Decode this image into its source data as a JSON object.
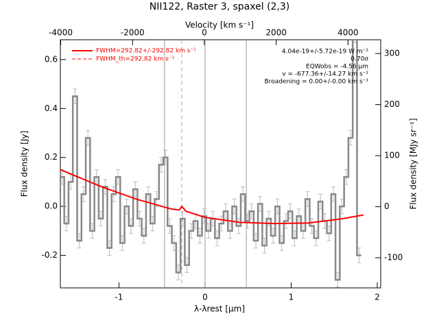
{
  "chart_data": {
    "type": "step",
    "title": "NII122, Raster 3, spaxel (2,3)",
    "x_label": "λ-λrest [μm]",
    "x2_label": "Velocity [km s⁻¹]",
    "y_label": "Flux density [Jy]",
    "y2_label": "Flux density [MJy sr⁻¹]",
    "xlim": [
      -1.68,
      2.04
    ],
    "xticks": [
      -1,
      0,
      1,
      2
    ],
    "x2lim": [
      -4010,
      4910
    ],
    "x2ticks": [
      -4000,
      -2000,
      0,
      2000,
      4000
    ],
    "ylim": [
      -0.333,
      0.681
    ],
    "yticks": [
      {
        "value": -0.2,
        "label": "-0.2"
      },
      {
        "value": 0,
        "label": "0.0"
      },
      0.2,
      0.4,
      0.6
    ],
    "y2lim": [
      -159,
      327
    ],
    "y2ticks": [
      -100,
      0,
      100,
      200,
      300
    ],
    "series": [
      {
        "name": "FWHM=292.82+/-292.82 km s⁻¹",
        "color": "#ff0000",
        "style": "solid",
        "x": [
          -1.68,
          -1.2,
          -0.8,
          -0.4,
          -0.3,
          -0.27,
          -0.22,
          0,
          0.4,
          0.8,
          1.2,
          1.6,
          1.84
        ],
        "values": [
          0.15,
          0.08,
          0.03,
          -0.01,
          -0.015,
          0.0,
          -0.02,
          -0.045,
          -0.065,
          -0.07,
          -0.068,
          -0.05,
          -0.035
        ]
      },
      {
        "name": "FWHM_th=292.82 km s⁻¹",
        "color": "#ff0000",
        "style": "dashed"
      }
    ],
    "spectrum": {
      "color": "#888888",
      "error": 0.03,
      "x": [
        -1.66,
        -1.61,
        -1.56,
        -1.51,
        -1.46,
        -1.41,
        -1.36,
        -1.31,
        -1.26,
        -1.21,
        -1.16,
        -1.11,
        -1.06,
        -1.01,
        -0.96,
        -0.91,
        -0.86,
        -0.81,
        -0.76,
        -0.71,
        -0.66,
        -0.61,
        -0.56,
        -0.51,
        -0.46,
        -0.41,
        -0.36,
        -0.31,
        -0.26,
        -0.21,
        -0.16,
        -0.11,
        -0.06,
        -0.01,
        0.04,
        0.09,
        0.14,
        0.19,
        0.24,
        0.29,
        0.34,
        0.39,
        0.44,
        0.49,
        0.54,
        0.59,
        0.64,
        0.69,
        0.74,
        0.79,
        0.84,
        0.89,
        0.94,
        0.99,
        1.04,
        1.09,
        1.14,
        1.19,
        1.24,
        1.29,
        1.34,
        1.39,
        1.44,
        1.49,
        1.54,
        1.59,
        1.64,
        1.69,
        1.74,
        1.79
      ],
      "values": [
        0.12,
        -0.07,
        0.1,
        0.45,
        -0.14,
        0.05,
        0.28,
        -0.1,
        0.12,
        -0.05,
        0.08,
        -0.17,
        0.05,
        0.12,
        -0.15,
        0.0,
        -0.08,
        0.07,
        -0.05,
        -0.12,
        0.05,
        -0.07,
        0.03,
        0.17,
        0.2,
        -0.08,
        -0.15,
        -0.27,
        -0.05,
        -0.24,
        -0.1,
        -0.06,
        -0.12,
        -0.04,
        -0.1,
        -0.05,
        -0.13,
        -0.07,
        -0.02,
        -0.1,
        0.0,
        -0.08,
        0.05,
        -0.06,
        -0.02,
        -0.14,
        0.01,
        -0.16,
        -0.05,
        -0.12,
        0.0,
        -0.15,
        -0.06,
        -0.02,
        -0.13,
        -0.04,
        -0.1,
        0.03,
        -0.08,
        -0.13,
        0.02,
        -0.06,
        -0.11,
        0.05,
        -0.3,
        0.0,
        0.12,
        0.28,
        0.7,
        -0.2
      ]
    },
    "vlines": [
      -0.47,
      0,
      0.48
    ],
    "dashed_vline": -0.27,
    "annotations": [
      "4.04e-19+/-5.72e-19 W m⁻²",
      "0.70σ",
      "EQWobs = -4.56 μm",
      "v = -677.36+/-14.27 km s⁻¹",
      "Broadening = 0.00+/-0.00 km s⁻¹"
    ]
  }
}
